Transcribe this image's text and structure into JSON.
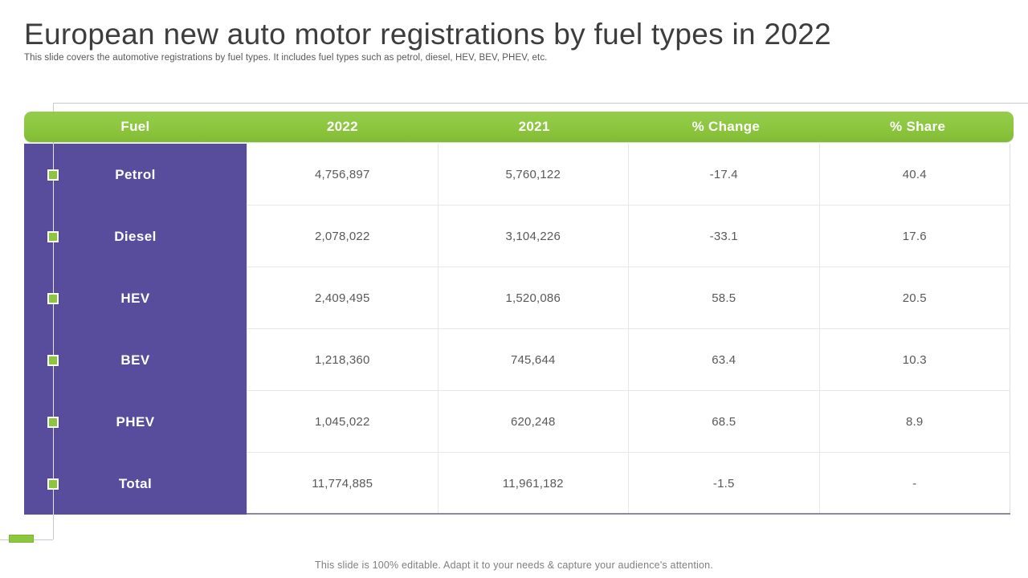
{
  "slide": {
    "title": "European new auto motor registrations by fuel types in 2022",
    "subtitle": "This slide covers the automotive registrations by fuel types. It includes fuel types such as petrol, diesel, HEV, BEV, PHEV, etc.",
    "footer": "This slide is 100% editable. Adapt it to your needs & capture your audience's attention."
  },
  "colors": {
    "header_green": "#8CC63F",
    "row_label_purple": "#584C9D",
    "grid_line": "#E8E8EC",
    "bottom_border": "#8A8A9C",
    "body_text": "#595959",
    "title_text": "#3D3D3D"
  },
  "chart_data": {
    "type": "table",
    "title": "European new auto motor registrations by fuel types in 2022",
    "columns": [
      "Fuel",
      "2022",
      "2021",
      "% Change",
      "% Share"
    ],
    "rows": [
      {
        "label": "Petrol",
        "values": [
          "4,756,897",
          "5,760,122",
          "-17.4",
          "40.4"
        ]
      },
      {
        "label": "Diesel",
        "values": [
          "2,078,022",
          "3,104,226",
          "-33.1",
          "17.6"
        ]
      },
      {
        "label": "HEV",
        "values": [
          "2,409,495",
          "1,520,086",
          "58.5",
          "20.5"
        ]
      },
      {
        "label": "BEV",
        "values": [
          "1,218,360",
          "745,644",
          "63.4",
          "10.3"
        ]
      },
      {
        "label": "PHEV",
        "values": [
          "1,045,022",
          "620,248",
          "68.5",
          "8.9"
        ]
      },
      {
        "label": "Total",
        "values": [
          "11,774,885",
          "11,961,182",
          "-1.5",
          "-"
        ]
      }
    ]
  }
}
